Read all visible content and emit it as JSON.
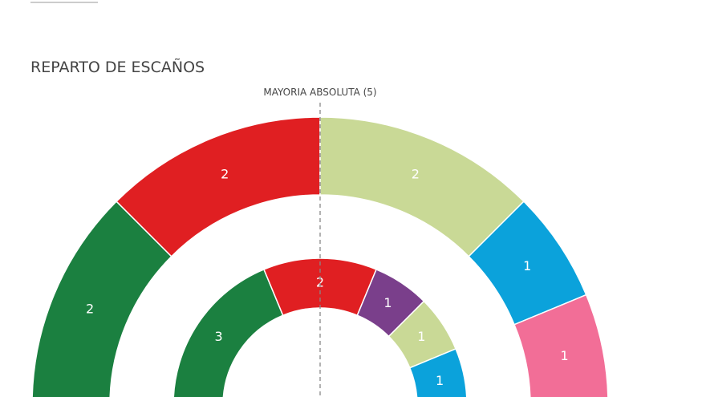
{
  "chart_data": {
    "type": "parliament",
    "title": "REPARTO DE ESCAÑOS",
    "annotation": "MAYORIA ABSOLUTA (5)",
    "rings": [
      {
        "values": [
          2,
          2,
          2,
          1,
          1
        ],
        "colors": [
          "#1b8040",
          "#e01f22",
          "#c9d996",
          "#0ba2db",
          "#f26e97"
        ]
      },
      {
        "values": [
          3,
          2,
          1,
          1,
          1
        ],
        "colors": [
          "#1b8040",
          "#e01f22",
          "#7a3f8b",
          "#c9d996",
          "#0ba2db"
        ]
      }
    ]
  }
}
